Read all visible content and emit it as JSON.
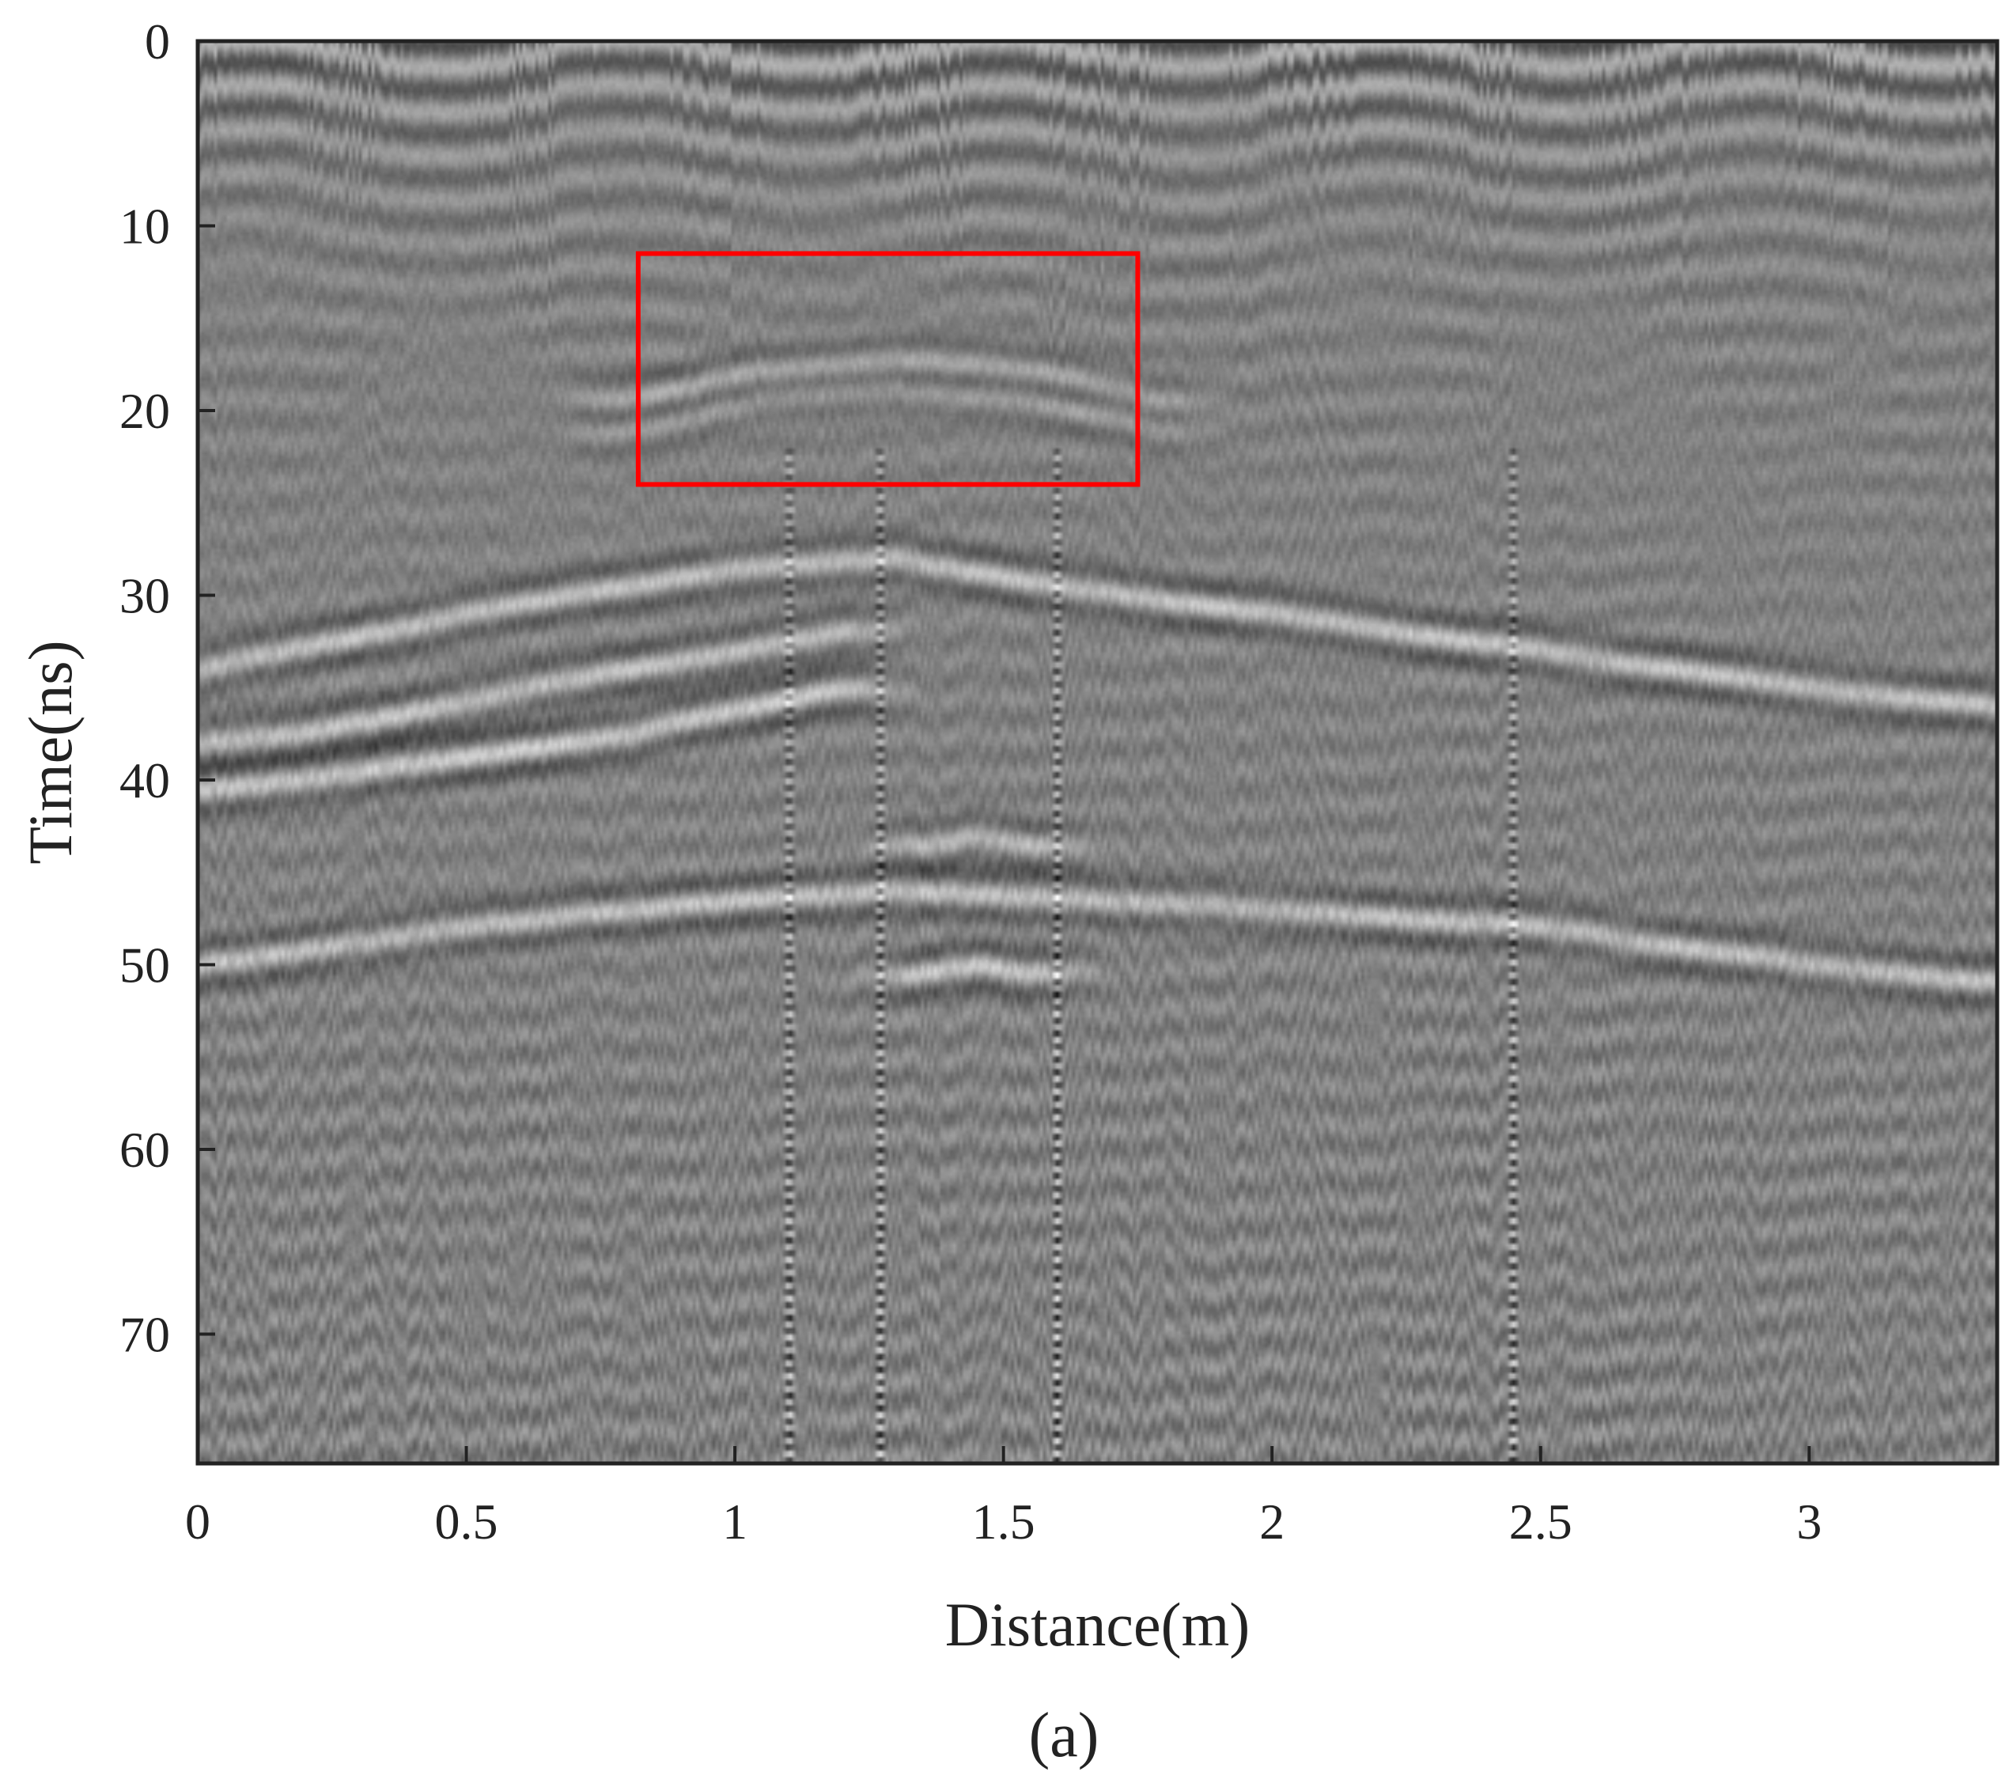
{
  "chart_data": {
    "type": "heatmap",
    "title": "",
    "xlabel": "Distance(m)",
    "ylabel": "Time(ns)",
    "xlim": [
      0,
      3.35
    ],
    "ylim": [
      77,
      0
    ],
    "y_axis_inverted": true,
    "x_ticks": [
      0,
      0.5,
      1,
      1.5,
      2,
      2.5,
      3
    ],
    "x_tick_labels": [
      "0",
      "0.5",
      "1",
      "1.5",
      "2",
      "2.5",
      "3"
    ],
    "y_ticks": [
      0,
      10,
      20,
      30,
      40,
      50,
      60,
      70
    ],
    "y_tick_labels": [
      "0",
      "10",
      "20",
      "30",
      "40",
      "50",
      "60",
      "70"
    ],
    "colormap": "grayscale",
    "grid": false,
    "legend": "none",
    "reflection_bands": [
      {
        "points": [
          [
            0,
            34
          ],
          [
            0.5,
            31
          ],
          [
            1.0,
            28.5
          ],
          [
            1.3,
            28
          ],
          [
            1.6,
            29.5
          ],
          [
            2.0,
            31
          ],
          [
            2.5,
            33
          ],
          [
            3.0,
            35
          ],
          [
            3.35,
            36
          ]
        ],
        "strength": 0.9
      },
      {
        "points": [
          [
            0,
            38
          ],
          [
            0.2,
            37.5
          ],
          [
            0.45,
            36
          ],
          [
            0.8,
            34
          ],
          [
            1.2,
            32
          ]
        ],
        "strength": 0.9
      },
      {
        "points": [
          [
            0,
            40.5
          ],
          [
            0.2,
            40
          ],
          [
            0.45,
            39
          ],
          [
            0.8,
            37.5
          ],
          [
            1.2,
            35
          ]
        ],
        "strength": 1.0
      },
      {
        "points": [
          [
            0,
            50
          ],
          [
            0.5,
            48
          ],
          [
            1.0,
            46.5
          ],
          [
            1.3,
            46
          ],
          [
            1.6,
            46.5
          ],
          [
            2.0,
            47
          ],
          [
            2.5,
            48
          ],
          [
            3.0,
            50
          ],
          [
            3.35,
            51
          ]
        ],
        "strength": 0.85
      },
      {
        "points": [
          [
            0.8,
            19.5
          ],
          [
            1.05,
            17.8
          ],
          [
            1.3,
            17.2
          ],
          [
            1.55,
            17.8
          ],
          [
            1.8,
            19.5
          ]
        ],
        "strength": 0.7
      },
      {
        "points": [
          [
            0.8,
            21
          ],
          [
            1.05,
            19.3
          ],
          [
            1.3,
            18.8
          ],
          [
            1.55,
            19.3
          ],
          [
            1.8,
            21
          ]
        ],
        "strength": 0.55
      },
      {
        "points": [
          [
            1.35,
            50.5
          ],
          [
            1.45,
            50
          ],
          [
            1.55,
            50.5
          ]
        ],
        "strength": 1.0
      },
      {
        "points": [
          [
            1.35,
            43.5
          ],
          [
            1.45,
            43
          ],
          [
            1.55,
            43.5
          ]
        ],
        "strength": 0.8
      }
    ],
    "vertical_artifacts_x": [
      1.1,
      1.27,
      1.6,
      2.45
    ],
    "annotations": [
      {
        "type": "rectangle",
        "color": "#ff0000",
        "x_range": [
          0.82,
          1.75
        ],
        "y_range": [
          11.5,
          24
        ]
      }
    ],
    "caption": "(a)"
  }
}
